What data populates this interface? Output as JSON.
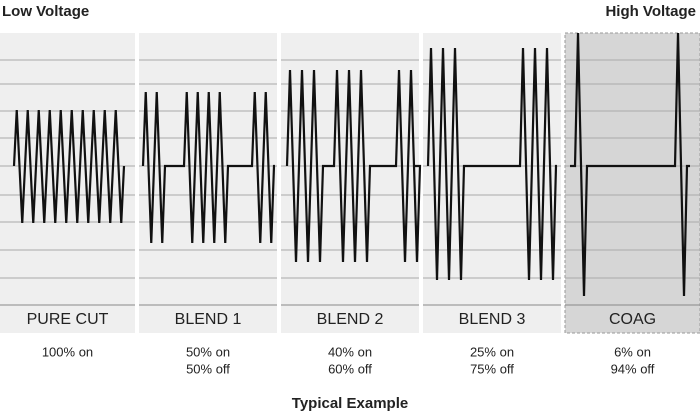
{
  "header": {
    "left": "Low Voltage",
    "right": "High Voltage"
  },
  "modes": [
    {
      "name": "PURE CUT",
      "duty": [
        "100% on"
      ]
    },
    {
      "name": "BLEND 1",
      "duty": [
        "50% on",
        "50% off"
      ]
    },
    {
      "name": "BLEND 2",
      "duty": [
        "40% on",
        "60% off"
      ]
    },
    {
      "name": "BLEND 3",
      "duty": [
        "25% on",
        "75% off"
      ]
    },
    {
      "name": "COAG",
      "duty": [
        "6% on",
        "94% off"
      ]
    }
  ],
  "footer": "Typical Example"
}
